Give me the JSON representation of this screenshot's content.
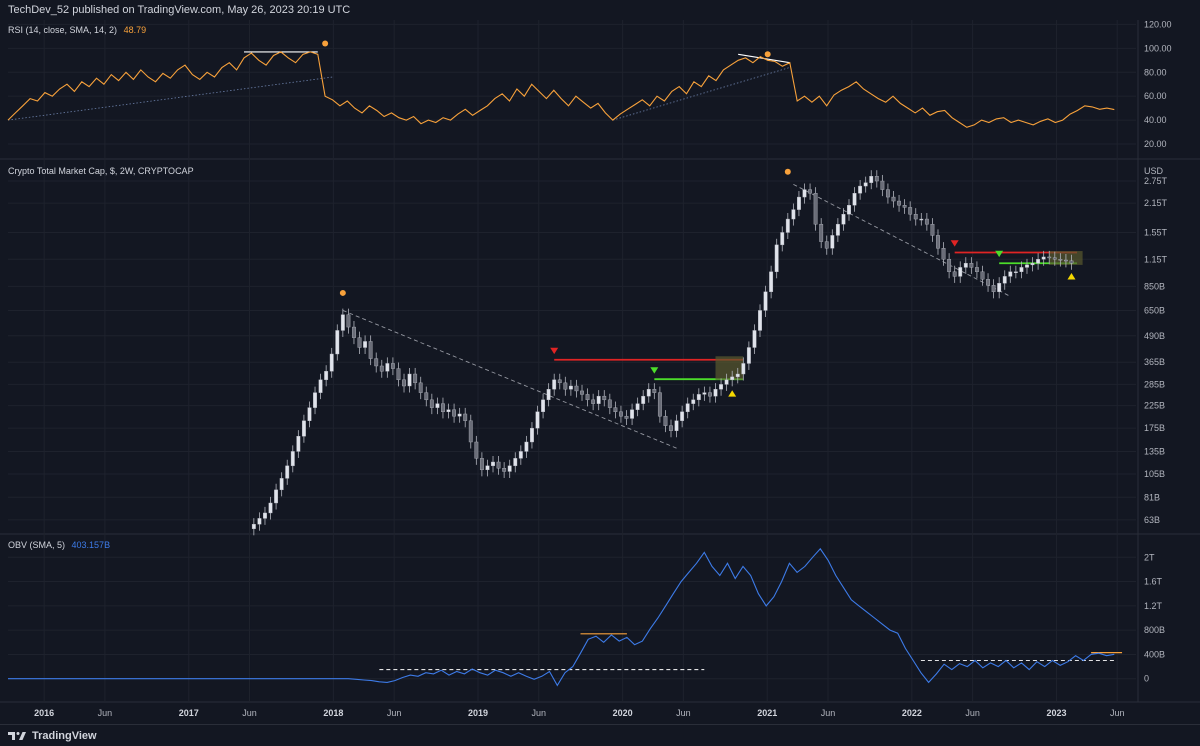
{
  "header": {
    "publisher": "TechDev_52 published on TradingView.com, May 26, 2023 20:19 UTC"
  },
  "footer": {
    "brand": "TradingView"
  },
  "colors": {
    "background": "#131722",
    "grid": "#1e222d",
    "rsi_line": "#f7a13b",
    "obv_line": "#3d7be8",
    "candle": "#d1d4dc",
    "resistance": "#e02424",
    "support": "#4cdd2a",
    "marker_orange": "#f7a13b",
    "marker_yellow": "#f5d800",
    "box": "#5a5a2e"
  },
  "time_axis": {
    "labels": [
      "2016",
      "Jun",
      "2017",
      "Jun",
      "2018",
      "Jun",
      "2019",
      "Jun",
      "2020",
      "Jun",
      "2021",
      "Jun",
      "2022",
      "Jun",
      "2023",
      "Jun"
    ],
    "years": [
      "2016",
      "2017",
      "2018",
      "2019",
      "2020",
      "2021",
      "2022",
      "2023"
    ]
  },
  "chart_data": [
    {
      "pane": "rsi",
      "type": "line",
      "label": "RSI (14, close, SMA, 14, 2)",
      "value_label": "48.79",
      "ylim": [
        10,
        122
      ],
      "yticks": [
        "120.00",
        "100.00",
        "80.00",
        "60.00",
        "40.00",
        "20.00"
      ],
      "ytick_values": [
        120,
        100,
        80,
        60,
        40,
        20
      ],
      "series": [
        {
          "values": [
            40,
            46,
            52,
            58,
            56,
            63,
            60,
            66,
            70,
            64,
            72,
            68,
            75,
            70,
            78,
            73,
            80,
            74,
            82,
            76,
            72,
            79,
            75,
            82,
            86,
            78,
            74,
            80,
            76,
            84,
            88,
            82,
            92,
            96,
            90,
            86,
            94,
            97,
            92,
            88,
            95,
            97,
            95,
            60,
            57,
            52,
            56,
            50,
            46,
            52,
            48,
            43,
            46,
            42,
            40,
            43,
            37,
            40,
            38,
            42,
            40,
            45,
            49,
            44,
            48,
            52,
            58,
            62,
            56,
            66,
            60,
            70,
            64,
            58,
            65,
            58,
            52,
            60,
            55,
            50,
            54,
            46,
            40,
            45,
            49,
            53,
            57,
            52,
            60,
            56,
            64,
            68,
            62,
            72,
            68,
            77,
            73,
            82,
            86,
            90,
            92,
            88,
            93,
            90,
            89,
            85,
            88,
            56,
            60,
            55,
            60,
            52,
            61,
            65,
            68,
            72,
            66,
            62,
            58,
            55,
            60,
            54,
            50,
            46,
            50,
            44,
            47,
            48,
            42,
            38,
            34,
            36,
            40,
            38,
            41,
            42,
            38,
            40,
            38,
            36,
            39,
            41,
            38,
            40,
            45,
            48,
            52,
            51,
            49,
            50,
            48.8
          ]
        }
      ]
    },
    {
      "pane": "price",
      "type": "candlestick",
      "label": "Crypto Total Market Cap, $, 2W, CRYPTOCAP",
      "unit": "USD",
      "scale": "log",
      "ylim": [
        55,
        3400
      ],
      "yticks": [
        "2.75T",
        "2.15T",
        "1.55T",
        "1.15T",
        "850B",
        "650B",
        "490B",
        "365B",
        "285B",
        "225B",
        "175B",
        "135B",
        "105B",
        "81B",
        "63B"
      ],
      "ytick_values": [
        2750,
        2150,
        1550,
        1150,
        850,
        650,
        490,
        365,
        285,
        225,
        175,
        135,
        105,
        81,
        63
      ],
      "closes": [
        60,
        64,
        68,
        76,
        88,
        100,
        115,
        135,
        160,
        190,
        220,
        260,
        300,
        330,
        400,
        520,
        620,
        540,
        480,
        430,
        460,
        380,
        350,
        330,
        360,
        340,
        300,
        280,
        320,
        290,
        260,
        240,
        220,
        230,
        210,
        215,
        200,
        205,
        190,
        150,
        125,
        110,
        115,
        120,
        112,
        108,
        115,
        125,
        135,
        150,
        175,
        210,
        240,
        270,
        300,
        290,
        270,
        280,
        265,
        255,
        240,
        230,
        250,
        240,
        220,
        210,
        200,
        195,
        215,
        230,
        250,
        270,
        260,
        200,
        180,
        170,
        190,
        210,
        230,
        240,
        255,
        260,
        250,
        270,
        285,
        300,
        310,
        320,
        360,
        430,
        520,
        650,
        800,
        1000,
        1350,
        1550,
        1800,
        2000,
        2300,
        2500,
        2400,
        1700,
        1400,
        1300,
        1500,
        1700,
        1900,
        2100,
        2400,
        2600,
        2700,
        2900,
        2750,
        2500,
        2300,
        2200,
        2100,
        2050,
        1900,
        1800,
        1800,
        1700,
        1500,
        1300,
        1150,
        1000,
        950,
        1050,
        1100,
        1050,
        1000,
        920,
        860,
        800,
        880,
        950,
        1000,
        1000,
        1050,
        1080,
        1100,
        1150,
        1180,
        1170,
        1150,
        1140,
        1130,
        1100
      ],
      "annotations": {
        "resistance_2019": 375,
        "support_2019": 302,
        "resistance_2022": 1240,
        "support_2022": 1100
      }
    },
    {
      "pane": "obv",
      "type": "line",
      "label": "OBV (SMA, 5)",
      "value_label": "403.157B",
      "ylim": [
        -350,
        2350
      ],
      "yticks": [
        "2T",
        "1.6T",
        "1.2T",
        "800B",
        "400B",
        "0"
      ],
      "ytick_values": [
        2000,
        1600,
        1200,
        800,
        400,
        0
      ],
      "series": [
        {
          "values": [
            0,
            0,
            0,
            0,
            0,
            0,
            0,
            0,
            0,
            0,
            0,
            0,
            0,
            0,
            0,
            0,
            0,
            0,
            0,
            0,
            0,
            0,
            0,
            0,
            0,
            0,
            0,
            0,
            0,
            0,
            0,
            0,
            0,
            0,
            0,
            0,
            0,
            0,
            0,
            0,
            0,
            0,
            0,
            0,
            0,
            -10,
            -20,
            -30,
            -50,
            -60,
            -30,
            20,
            60,
            40,
            100,
            80,
            140,
            60,
            120,
            80,
            160,
            100,
            60,
            140,
            100,
            40,
            100,
            40,
            -10,
            40,
            120,
            -110,
            100,
            200,
            420,
            650,
            700,
            600,
            720,
            620,
            680,
            560,
            620,
            820,
            1000,
            1200,
            1400,
            1600,
            1750,
            1900,
            2080,
            1850,
            1700,
            1900,
            1650,
            1850,
            1700,
            1400,
            1200,
            1350,
            1600,
            1900,
            1750,
            1850,
            2000,
            2140,
            1950,
            1700,
            1500,
            1300,
            1200,
            1100,
            1000,
            900,
            800,
            750,
            500,
            300,
            100,
            -60,
            80,
            240,
            150,
            250,
            200,
            300,
            180,
            260,
            200,
            300,
            180,
            260,
            150,
            280,
            200,
            300,
            220,
            280,
            380,
            300,
            400,
            420,
            380,
            403
          ]
        }
      ]
    }
  ]
}
